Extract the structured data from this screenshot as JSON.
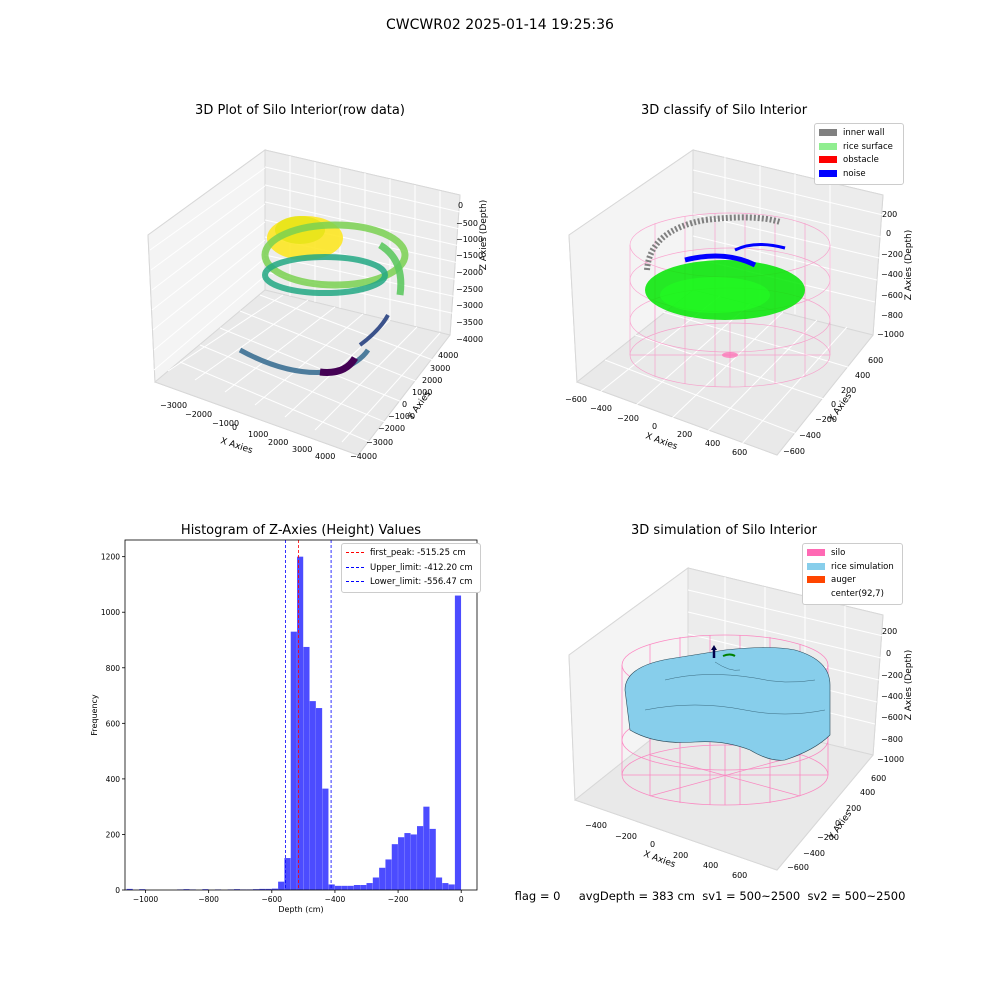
{
  "suptitle": "CWCWR02 2025-01-14 19:25:36",
  "panel1": {
    "title": "3D Plot of Silo Interior(row data)",
    "xlabel": "X Axies",
    "ylabel": "Y Axies",
    "zlabel": "Z Axies (Depth)",
    "xticks": [
      "−3000",
      "−2000",
      "−1000",
      "0",
      "1000",
      "2000",
      "3000",
      "4000"
    ],
    "yticks": [
      "4000",
      "3000",
      "2000",
      "1000",
      "0",
      "−1000",
      "−2000",
      "−3000",
      "−4000"
    ],
    "zticks": [
      "0",
      "−500",
      "−1000",
      "−1500",
      "−2000",
      "−2500",
      "−3000",
      "−3500",
      "−4000"
    ],
    "colormap": [
      "#440154",
      "#3b528b",
      "#21918c",
      "#5ec962",
      "#fde725"
    ]
  },
  "panel2": {
    "title": "3D classify of Silo Interior",
    "xlabel": "X Axies",
    "ylabel": "Y Axies",
    "zlabel": "Z Axies (Depth)",
    "xticks": [
      "−600",
      "−400",
      "−200",
      "0",
      "200",
      "400",
      "600"
    ],
    "yticks": [
      "600",
      "400",
      "200",
      "0",
      "−200",
      "−400",
      "−600"
    ],
    "zticks": [
      "200",
      "0",
      "−200",
      "−400",
      "−600",
      "−800",
      "−1000"
    ],
    "legend": [
      {
        "label": "inner wall",
        "color": "#808080"
      },
      {
        "label": "rice surface",
        "color": "#90ee90"
      },
      {
        "label": "obstacle",
        "color": "#ff0000"
      },
      {
        "label": "noise",
        "color": "#0000ff"
      }
    ]
  },
  "panel4": {
    "title": "3D simulation of Silo Interior",
    "xlabel": "X Axies",
    "ylabel": "Y Axies",
    "zlabel": "Z Axies (Depth)",
    "xticks": [
      "−400",
      "−200",
      "0",
      "200",
      "400",
      "600"
    ],
    "yticks": [
      "600",
      "400",
      "200",
      "0",
      "−200",
      "−400",
      "−600"
    ],
    "zticks": [
      "200",
      "0",
      "−200",
      "−400",
      "−600",
      "−800",
      "−1000"
    ],
    "legend": [
      {
        "label": "silo",
        "color": "#ff69b4"
      },
      {
        "label": "rice simulation",
        "color": "#87ceeb"
      },
      {
        "label": "auger",
        "color": "#ff4500"
      },
      {
        "label": "center(92,7)",
        "color": ""
      }
    ]
  },
  "status_line": "flag = 0     avgDepth = 383 cm  sv1 = 500~2500  sv2 = 500~2500",
  "chart_data": {
    "type": "bar",
    "title": "Histogram of Z-Axies (Height) Values",
    "xlabel": "Depth (cm)",
    "ylabel": "Frequency",
    "xlim": [
      -1065,
      50
    ],
    "ylim": [
      0,
      1260
    ],
    "xticks": [
      "−1000",
      "−800",
      "−600",
      "−400",
      "−200",
      "0"
    ],
    "xtick_values": [
      -1000,
      -800,
      -600,
      -400,
      -200,
      0
    ],
    "yticks": [
      "0",
      "200",
      "400",
      "600",
      "800",
      "1000",
      "1200"
    ],
    "ytick_values": [
      0,
      200,
      400,
      600,
      800,
      1000,
      1200
    ],
    "bar_color": "#0000ff",
    "bin_width": 19.5,
    "bins": [
      [
        -1060,
        4
      ],
      [
        -1040,
        0
      ],
      [
        -1020,
        3
      ],
      [
        -1000,
        0
      ],
      [
        -980,
        0
      ],
      [
        -960,
        0
      ],
      [
        -940,
        0
      ],
      [
        -920,
        0
      ],
      [
        -900,
        2
      ],
      [
        -880,
        3
      ],
      [
        -860,
        2
      ],
      [
        -840,
        0
      ],
      [
        -820,
        3
      ],
      [
        -800,
        0
      ],
      [
        -780,
        2
      ],
      [
        -760,
        0
      ],
      [
        -740,
        2
      ],
      [
        -720,
        3
      ],
      [
        -700,
        2
      ],
      [
        -680,
        2
      ],
      [
        -660,
        3
      ],
      [
        -640,
        4
      ],
      [
        -620,
        4
      ],
      [
        -600,
        5
      ],
      [
        -580,
        30
      ],
      [
        -560,
        115
      ],
      [
        -540,
        930
      ],
      [
        -520,
        1200
      ],
      [
        -500,
        875
      ],
      [
        -480,
        680
      ],
      [
        -460,
        655
      ],
      [
        -440,
        365
      ],
      [
        -420,
        20
      ],
      [
        -400,
        15
      ],
      [
        -380,
        15
      ],
      [
        -360,
        15
      ],
      [
        -340,
        18
      ],
      [
        -320,
        18
      ],
      [
        -300,
        25
      ],
      [
        -280,
        45
      ],
      [
        -260,
        80
      ],
      [
        -240,
        110
      ],
      [
        -220,
        165
      ],
      [
        -200,
        190
      ],
      [
        -180,
        205
      ],
      [
        -160,
        200
      ],
      [
        -140,
        230
      ],
      [
        -120,
        300
      ],
      [
        -100,
        220
      ],
      [
        -80,
        45
      ],
      [
        -60,
        25
      ],
      [
        -40,
        20
      ],
      [
        -20,
        1060
      ]
    ],
    "lines": [
      {
        "label": "first_peak: -515.25 cm",
        "x": -515.25,
        "color": "#ff0000"
      },
      {
        "label": "Upper_limit: -412.20 cm",
        "x": -412.2,
        "color": "#0000ff"
      },
      {
        "label": "Lower_limit: -556.47 cm",
        "x": -556.47,
        "color": "#0000ff"
      }
    ],
    "legend_position": "top-right"
  }
}
